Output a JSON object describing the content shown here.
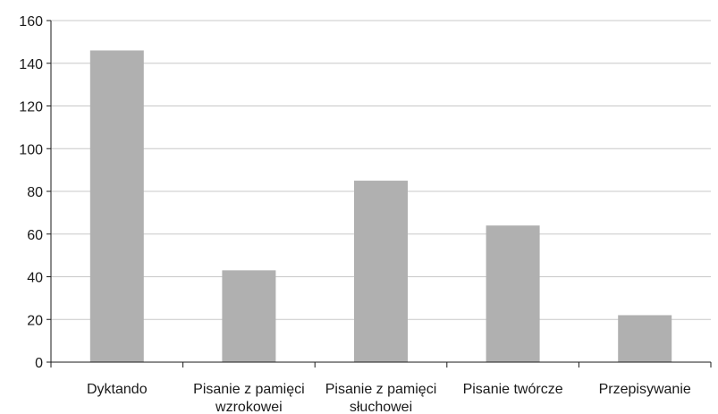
{
  "chart_data": {
    "type": "bar",
    "categories": [
      [
        "Dyktando"
      ],
      [
        "Pisanie z pamięci",
        "wzrokowei"
      ],
      [
        "Pisanie z pamięci",
        "słuchowei"
      ],
      [
        "Pisanie twórcze"
      ],
      [
        "Przepisywanie"
      ]
    ],
    "values": [
      146,
      43,
      85,
      64,
      22
    ],
    "ylim": [
      0,
      160
    ],
    "yticks": [
      0,
      20,
      40,
      60,
      80,
      100,
      120,
      140,
      160
    ],
    "grid": true,
    "bar_color": "#b0b0b0",
    "title": "",
    "xlabel": "",
    "ylabel": ""
  }
}
